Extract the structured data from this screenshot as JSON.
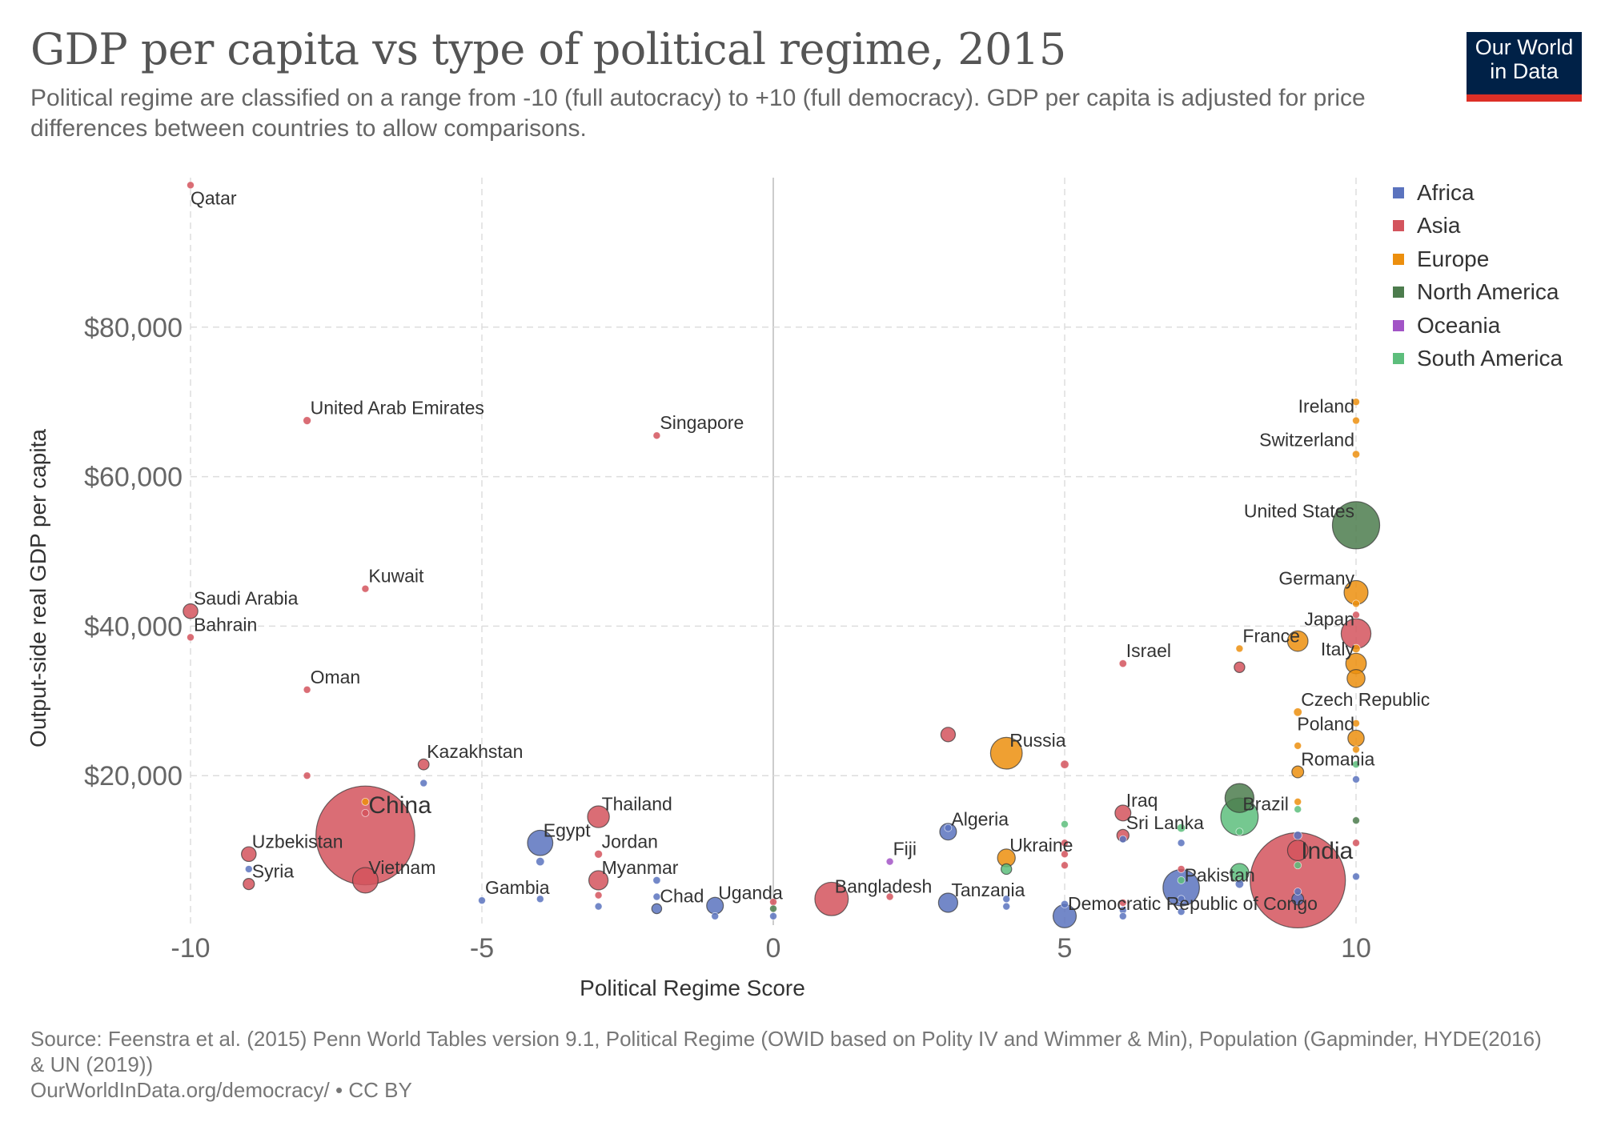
{
  "title": "GDP per capita vs type of political regime, 2015",
  "subtitle": "Political regime are classified on a range from -10 (full autocracy) to +10 (full democracy). GDP per capita is adjusted for price differences between countries to allow comparisons.",
  "logo": {
    "line1": "Our World",
    "line2": "in Data"
  },
  "footer": {
    "source": "Source: Feenstra et al. (2015) Penn World Tables version 9.1, Political Regime (OWID based on Polity IV and Wimmer & Min), Population (Gapminder, HYDE(2016) & UN (2019))",
    "url": "OurWorldInData.org/democracy/ • CC BY"
  },
  "chart_data": {
    "type": "scatter",
    "xlabel": "Political Regime Score",
    "ylabel": "Output-side real GDP per capita",
    "xlim": [
      -10,
      10
    ],
    "ylim": [
      0,
      100000
    ],
    "xticks": [
      -10,
      -5,
      0,
      5,
      10
    ],
    "yticks": [
      20000,
      40000,
      60000,
      80000
    ],
    "ytick_labels": [
      "$20,000",
      "$40,000",
      "$60,000",
      "$80,000"
    ],
    "grid": true,
    "legend_position": "right",
    "legend": [
      {
        "name": "Africa",
        "color": "#5b73be"
      },
      {
        "name": "Asia",
        "color": "#d3545d"
      },
      {
        "name": "Europe",
        "color": "#ec8f0e"
      },
      {
        "name": "North America",
        "color": "#4c7c4d"
      },
      {
        "name": "Oceania",
        "color": "#a254c6"
      },
      {
        "name": "South America",
        "color": "#5dbe7c"
      }
    ],
    "points": [
      {
        "x": -10,
        "y": 99000,
        "pop": 2.4,
        "region": "Asia",
        "label": "Qatar"
      },
      {
        "x": -10,
        "y": 42000,
        "pop": 31,
        "region": "Asia",
        "label": "Saudi Arabia"
      },
      {
        "x": -10,
        "y": 38500,
        "pop": 1.4,
        "region": "Asia",
        "label": "Bahrain"
      },
      {
        "x": -8,
        "y": 67500,
        "pop": 9,
        "region": "Asia",
        "label": "United Arab Emirates"
      },
      {
        "x": -8,
        "y": 31500,
        "pop": 4.3,
        "region": "Asia",
        "label": "Oman"
      },
      {
        "x": -8,
        "y": 20000,
        "pop": 1,
        "region": "Asia",
        "label": ""
      },
      {
        "x": -7,
        "y": 45000,
        "pop": 4,
        "region": "Asia",
        "label": "Kuwait"
      },
      {
        "x": -7,
        "y": 12000,
        "pop": 1400,
        "region": "Asia",
        "label": "China"
      },
      {
        "x": -7,
        "y": 16500,
        "pop": 1,
        "region": "Europe",
        "label": ""
      },
      {
        "x": -7,
        "y": 15000,
        "pop": 6,
        "region": "Asia",
        "label": ""
      },
      {
        "x": -7,
        "y": 6000,
        "pop": 93,
        "region": "Asia",
        "label": "Vietnam"
      },
      {
        "x": -6,
        "y": 21500,
        "pop": 17,
        "region": "Asia",
        "label": "Kazakhstan"
      },
      {
        "x": -6,
        "y": 19000,
        "pop": 1,
        "region": "Africa",
        "label": ""
      },
      {
        "x": -9,
        "y": 9500,
        "pop": 31,
        "region": "Asia",
        "label": "Uzbekistan"
      },
      {
        "x": -9,
        "y": 5500,
        "pop": 18,
        "region": "Asia",
        "label": "Syria"
      },
      {
        "x": -9,
        "y": 7500,
        "pop": 1,
        "region": "Africa",
        "label": ""
      },
      {
        "x": -5,
        "y": 3300,
        "pop": 2,
        "region": "Africa",
        "label": "Gambia"
      },
      {
        "x": -4,
        "y": 11000,
        "pop": 92,
        "region": "Africa",
        "label": "Egypt"
      },
      {
        "x": -4,
        "y": 8500,
        "pop": 10,
        "region": "Africa",
        "label": ""
      },
      {
        "x": -4,
        "y": 3500,
        "pop": 6,
        "region": "Africa",
        "label": ""
      },
      {
        "x": -3,
        "y": 14500,
        "pop": 68,
        "region": "Asia",
        "label": "Thailand"
      },
      {
        "x": -3,
        "y": 9500,
        "pop": 9,
        "region": "Asia",
        "label": "Jordan"
      },
      {
        "x": -3,
        "y": 6000,
        "pop": 53,
        "region": "Asia",
        "label": "Myanmar"
      },
      {
        "x": -3,
        "y": 4000,
        "pop": 1,
        "region": "Asia",
        "label": ""
      },
      {
        "x": -3,
        "y": 2500,
        "pop": 3,
        "region": "Africa",
        "label": ""
      },
      {
        "x": -2,
        "y": 65500,
        "pop": 5.5,
        "region": "Asia",
        "label": "Singapore"
      },
      {
        "x": -2,
        "y": 6000,
        "pop": 8,
        "region": "Africa",
        "label": ""
      },
      {
        "x": -2,
        "y": 3800,
        "pop": 1,
        "region": "Africa",
        "label": ""
      },
      {
        "x": -2,
        "y": 2200,
        "pop": 14,
        "region": "Africa",
        "label": "Chad"
      },
      {
        "x": -1,
        "y": 2600,
        "pop": 40,
        "region": "Africa",
        "label": "Uganda"
      },
      {
        "x": -1,
        "y": 1200,
        "pop": 3,
        "region": "Africa",
        "label": ""
      },
      {
        "x": 0,
        "y": 3100,
        "pop": 2,
        "region": "Asia",
        "label": ""
      },
      {
        "x": 0,
        "y": 2200,
        "pop": 1,
        "region": "North America",
        "label": ""
      },
      {
        "x": 0,
        "y": 1200,
        "pop": 2,
        "region": "Africa",
        "label": ""
      },
      {
        "x": 1,
        "y": 3500,
        "pop": 160,
        "region": "Asia",
        "label": "Bangladesh"
      },
      {
        "x": 2,
        "y": 8500,
        "pop": 1,
        "region": "Oceania",
        "label": "Fiji"
      },
      {
        "x": 2,
        "y": 3800,
        "pop": 2,
        "region": "Asia",
        "label": ""
      },
      {
        "x": 3,
        "y": 12500,
        "pop": 40,
        "region": "Africa",
        "label": "Algeria"
      },
      {
        "x": 3,
        "y": 25500,
        "pop": 30,
        "region": "Asia",
        "label": ""
      },
      {
        "x": 3,
        "y": 13000,
        "pop": 1,
        "region": "Africa",
        "label": ""
      },
      {
        "x": 3,
        "y": 3000,
        "pop": 53,
        "region": "Africa",
        "label": "Tanzania"
      },
      {
        "x": 4,
        "y": 23000,
        "pop": 144,
        "region": "Europe",
        "label": "Russia"
      },
      {
        "x": 4,
        "y": 9000,
        "pop": 45,
        "region": "Europe",
        "label": "Ukraine"
      },
      {
        "x": 4,
        "y": 7500,
        "pop": 16,
        "region": "South America",
        "label": ""
      },
      {
        "x": 4,
        "y": 3500,
        "pop": 3,
        "region": "Africa",
        "label": ""
      },
      {
        "x": 4,
        "y": 2500,
        "pop": 4,
        "region": "Africa",
        "label": ""
      },
      {
        "x": 5,
        "y": 21500,
        "pop": 10,
        "region": "Asia",
        "label": ""
      },
      {
        "x": 5,
        "y": 13500,
        "pop": 1,
        "region": "South America",
        "label": ""
      },
      {
        "x": 5,
        "y": 11000,
        "pop": 1,
        "region": "Asia",
        "label": ""
      },
      {
        "x": 5,
        "y": 9500,
        "pop": 1,
        "region": "Asia",
        "label": ""
      },
      {
        "x": 5,
        "y": 8000,
        "pop": 1,
        "region": "Asia",
        "label": ""
      },
      {
        "x": 5,
        "y": 2800,
        "pop": 8,
        "region": "Africa",
        "label": ""
      },
      {
        "x": 5,
        "y": 1200,
        "pop": 77,
        "region": "Africa",
        "label": "Democratic Republic of Congo"
      },
      {
        "x": 6,
        "y": 35000,
        "pop": 8,
        "region": "Asia",
        "label": "Israel"
      },
      {
        "x": 6,
        "y": 15000,
        "pop": 36,
        "region": "Asia",
        "label": "Iraq"
      },
      {
        "x": 6,
        "y": 12000,
        "pop": 21,
        "region": "Asia",
        "label": "Sri Lanka"
      },
      {
        "x": 6,
        "y": 11500,
        "pop": 1,
        "region": "Africa",
        "label": ""
      },
      {
        "x": 6,
        "y": 3000,
        "pop": 2,
        "region": "Asia",
        "label": ""
      },
      {
        "x": 6,
        "y": 2000,
        "pop": 2,
        "region": "Africa",
        "label": ""
      },
      {
        "x": 6,
        "y": 1200,
        "pop": 1,
        "region": "Africa",
        "label": ""
      },
      {
        "x": 7,
        "y": 13000,
        "pop": 10,
        "region": "South America",
        "label": ""
      },
      {
        "x": 7,
        "y": 11000,
        "pop": 2,
        "region": "Africa",
        "label": ""
      },
      {
        "x": 7,
        "y": 5000,
        "pop": 190,
        "region": "Africa",
        "label": "Pakistan"
      },
      {
        "x": 7,
        "y": 6000,
        "pop": 4,
        "region": "South America",
        "label": ""
      },
      {
        "x": 7,
        "y": 7500,
        "pop": 1,
        "region": "Asia",
        "label": ""
      },
      {
        "x": 7,
        "y": 3500,
        "pop": 5,
        "region": "Africa",
        "label": ""
      },
      {
        "x": 7,
        "y": 1800,
        "pop": 2,
        "region": "Africa",
        "label": ""
      },
      {
        "x": 8,
        "y": 37000,
        "pop": 1,
        "region": "Europe",
        "label": "France"
      },
      {
        "x": 8,
        "y": 34500,
        "pop": 16,
        "region": "Asia",
        "label": ""
      },
      {
        "x": 8,
        "y": 17000,
        "pop": 120,
        "region": "North America",
        "label": ""
      },
      {
        "x": 8,
        "y": 14500,
        "pop": 200,
        "region": "South America",
        "label": "Brazil"
      },
      {
        "x": 8,
        "y": 12500,
        "pop": 2,
        "region": "South America",
        "label": ""
      },
      {
        "x": 8,
        "y": 7000,
        "pop": 50,
        "region": "South America",
        "label": ""
      },
      {
        "x": 8,
        "y": 5500,
        "pop": 10,
        "region": "Africa",
        "label": ""
      },
      {
        "x": 9,
        "y": 38000,
        "pop": 60,
        "region": "Europe",
        "label": ""
      },
      {
        "x": 9,
        "y": 28500,
        "pop": 10,
        "region": "Europe",
        "label": "Czech Republic"
      },
      {
        "x": 9,
        "y": 24000,
        "pop": 1,
        "region": "Europe",
        "label": ""
      },
      {
        "x": 9,
        "y": 20500,
        "pop": 20,
        "region": "Europe",
        "label": "Romania"
      },
      {
        "x": 9,
        "y": 16500,
        "pop": 2,
        "region": "Europe",
        "label": ""
      },
      {
        "x": 9,
        "y": 15500,
        "pop": 1,
        "region": "South America",
        "label": ""
      },
      {
        "x": 9,
        "y": 12000,
        "pop": 10,
        "region": "Africa",
        "label": ""
      },
      {
        "x": 9,
        "y": 10000,
        "pop": 60,
        "region": "Asia",
        "label": ""
      },
      {
        "x": 9,
        "y": 6000,
        "pop": 1300,
        "region": "Asia",
        "label": "India"
      },
      {
        "x": 9,
        "y": 8000,
        "pop": 5,
        "region": "South America",
        "label": ""
      },
      {
        "x": 9,
        "y": 4500,
        "pop": 2,
        "region": "Africa",
        "label": ""
      },
      {
        "x": 9,
        "y": 3500,
        "pop": 20,
        "region": "Africa",
        "label": ""
      },
      {
        "x": 10,
        "y": 70000,
        "pop": 1,
        "region": "Europe",
        "label": ""
      },
      {
        "x": 10,
        "y": 67500,
        "pop": 4.7,
        "region": "Europe",
        "label": "Ireland"
      },
      {
        "x": 10,
        "y": 63000,
        "pop": 8,
        "region": "Europe",
        "label": "Switzerland"
      },
      {
        "x": 10,
        "y": 53500,
        "pop": 320,
        "region": "North America",
        "label": "United States"
      },
      {
        "x": 10,
        "y": 44500,
        "pop": 82,
        "region": "Europe",
        "label": "Germany"
      },
      {
        "x": 10,
        "y": 43000,
        "pop": 5,
        "region": "Europe",
        "label": ""
      },
      {
        "x": 10,
        "y": 41500,
        "pop": 5,
        "region": "Asia",
        "label": ""
      },
      {
        "x": 10,
        "y": 39000,
        "pop": 127,
        "region": "Asia",
        "label": "Japan"
      },
      {
        "x": 10,
        "y": 37000,
        "pop": 10,
        "region": "Europe",
        "label": ""
      },
      {
        "x": 10,
        "y": 35000,
        "pop": 60,
        "region": "Europe",
        "label": "Italy"
      },
      {
        "x": 10,
        "y": 33000,
        "pop": 46,
        "region": "Europe",
        "label": ""
      },
      {
        "x": 10,
        "y": 27000,
        "pop": 2,
        "region": "Europe",
        "label": ""
      },
      {
        "x": 10,
        "y": 25000,
        "pop": 38,
        "region": "Europe",
        "label": "Poland"
      },
      {
        "x": 10,
        "y": 23500,
        "pop": 3,
        "region": "Europe",
        "label": ""
      },
      {
        "x": 10,
        "y": 21500,
        "pop": 2,
        "region": "South America",
        "label": ""
      },
      {
        "x": 10,
        "y": 19500,
        "pop": 1,
        "region": "Africa",
        "label": ""
      },
      {
        "x": 10,
        "y": 14000,
        "pop": 1,
        "region": "North America",
        "label": ""
      },
      {
        "x": 10,
        "y": 11000,
        "pop": 1,
        "region": "Asia",
        "label": ""
      },
      {
        "x": 10,
        "y": 6500,
        "pop": 1,
        "region": "Africa",
        "label": ""
      }
    ]
  }
}
